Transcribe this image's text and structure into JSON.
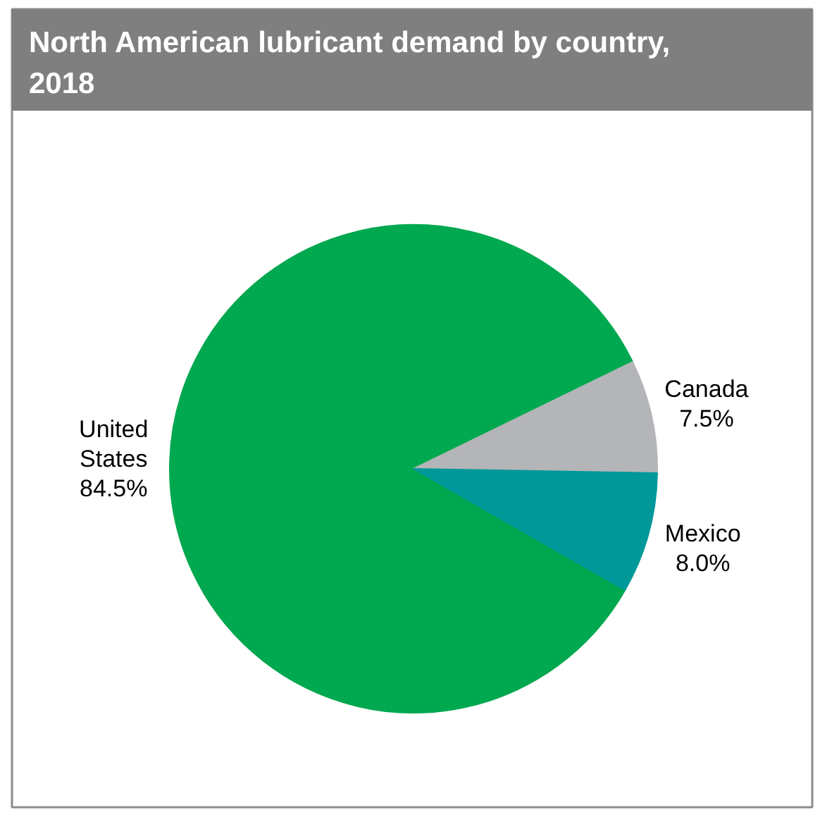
{
  "chart_data": {
    "type": "pie",
    "title": "North American lubricant demand by country, 2018",
    "categories": [
      "United States",
      "Canada",
      "Mexico"
    ],
    "values": [
      84.5,
      7.5,
      8.0
    ],
    "colors": [
      "#00a84f",
      "#b3b5b8",
      "#009899"
    ],
    "value_labels": [
      "84.5%",
      "7.5%",
      "8.0%"
    ]
  }
}
